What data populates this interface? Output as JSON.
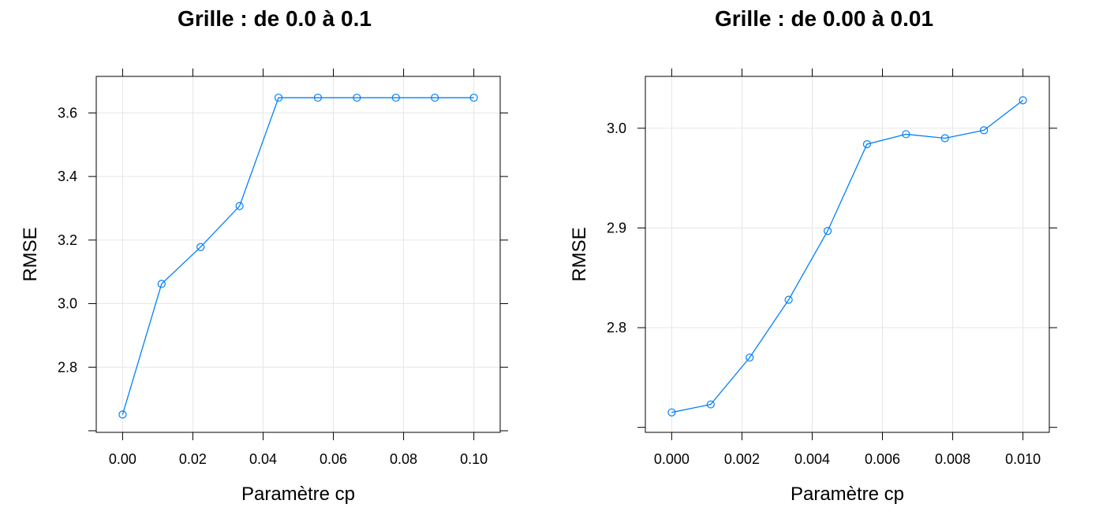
{
  "chart_data": [
    {
      "type": "line",
      "title": "Grille : de 0.0 à 0.1",
      "xlabel": "Paramètre cp",
      "ylabel": "RMSE",
      "xlim": [
        -0.0075,
        0.1075
      ],
      "ylim": [
        2.595,
        3.715
      ],
      "x_ticks": [
        0.0,
        0.02,
        0.04,
        0.06,
        0.08,
        0.1
      ],
      "x_tick_labels": [
        "0.00",
        "0.02",
        "0.04",
        "0.06",
        "0.08",
        "0.10"
      ],
      "y_ticks": [
        2.8,
        3.0,
        3.2,
        3.4,
        3.6
      ],
      "y_tick_labels": [
        "2.8",
        "3.0",
        "3.2",
        "3.4",
        "3.6"
      ],
      "grid": true,
      "color": "#0080ff",
      "series": [
        {
          "x": [
            0.0,
            0.0111,
            0.0222,
            0.0333,
            0.0444,
            0.0556,
            0.0667,
            0.0778,
            0.0889,
            0.1
          ],
          "values": [
            2.651,
            3.062,
            3.178,
            3.307,
            3.648,
            3.648,
            3.648,
            3.648,
            3.648,
            3.648
          ]
        }
      ]
    },
    {
      "type": "line",
      "title": "Grille : de 0.00 à 0.01",
      "xlabel": "Paramètre cp",
      "ylabel": "RMSE",
      "xlim": [
        -0.00075,
        0.01075
      ],
      "ylim": [
        2.695,
        3.052
      ],
      "x_ticks": [
        0.0,
        0.002,
        0.004,
        0.006,
        0.008,
        0.01
      ],
      "x_tick_labels": [
        "0.000",
        "0.002",
        "0.004",
        "0.006",
        "0.008",
        "0.010"
      ],
      "y_ticks": [
        2.8,
        2.9,
        3.0
      ],
      "y_tick_labels": [
        "2.8",
        "2.9",
        "3.0"
      ],
      "grid": true,
      "color": "#0080ff",
      "series": [
        {
          "x": [
            0.0,
            0.00111,
            0.00222,
            0.00333,
            0.00444,
            0.00556,
            0.00667,
            0.00778,
            0.00889,
            0.01
          ],
          "values": [
            2.715,
            2.723,
            2.77,
            2.828,
            2.897,
            2.984,
            2.994,
            2.99,
            2.998,
            3.028
          ]
        }
      ]
    }
  ]
}
